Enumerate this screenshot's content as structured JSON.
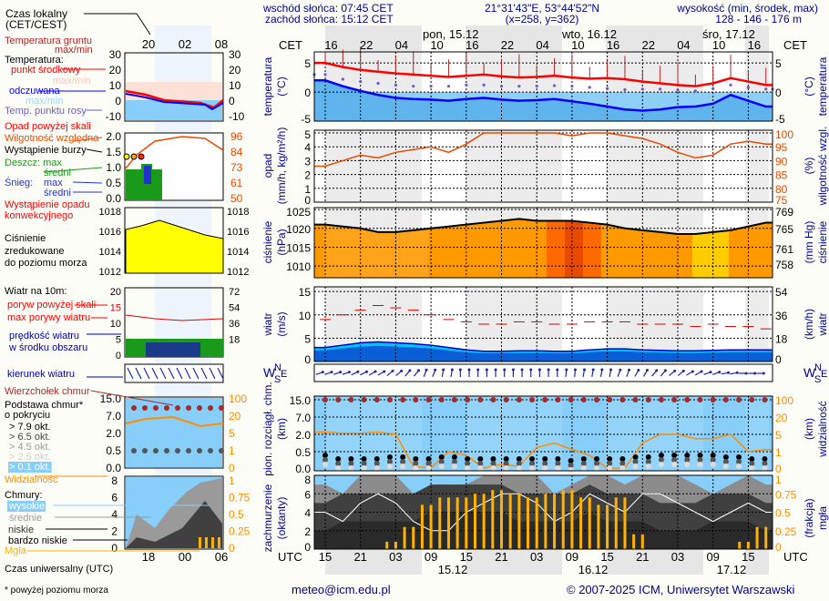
{
  "header": {
    "local_time_label": "Czas lokalny",
    "local_time_zone": "(CET/CEST)",
    "sunrise": "wschód słońca: 07:45 CET",
    "sunset": "zachód słońca: 15:12 CET",
    "coords": "21°31'43\"E, 53°44'52\"N",
    "grid": "(x=258,  y=362)",
    "elevation_label": "wysokość (min, środek, max)",
    "elevation": "128 - 146 - 176 m"
  },
  "time_axis": {
    "cet_label": "CET",
    "utc_label": "UTC",
    "cet_ticks": [
      "16",
      "22",
      "04",
      "10",
      "16",
      "22",
      "04",
      "10",
      "16",
      "22",
      "04",
      "10",
      "16"
    ],
    "utc_ticks": [
      "15",
      "21",
      "03",
      "09",
      "15",
      "21",
      "03",
      "09",
      "15",
      "21",
      "03",
      "09",
      "15"
    ],
    "days_top": [
      "pon, 15.12",
      "wto, 16.12",
      "śro, 17.12"
    ],
    "days_bottom": [
      "15.12",
      "16.12",
      "17.12"
    ]
  },
  "legend": {
    "local_ticks": [
      "20",
      "02",
      "08"
    ],
    "utc_ticks": [
      "18",
      "00",
      "06"
    ],
    "utc_label": "Czas uniwersalny (UTC)",
    "ground_temp": "Temperatura gruntu",
    "ground_temp_sub": "max/min",
    "temperature": "Temperatura:",
    "midpoint": "punkt środkowy",
    "maxmin1": "max/min",
    "feels": "odczuwana",
    "maxmin2": "max/min",
    "dew": "Temp. punktu rosy",
    "temp_ticks": [
      "30",
      "20",
      "10",
      "0",
      "-10"
    ],
    "precip_over": "Opad powyżej skali",
    "humidity": "Wilgotność względna",
    "storm": "Wystąpienie burzy",
    "rain": "Deszcz: max",
    "rain_avg": "średni",
    "snow": "Śnieg:",
    "snow_max": "max",
    "snow_avg": "średni",
    "precip_occ": "Wystąpienie opadu",
    "precip_conv": "konwekcyjnego",
    "precip_ticks": [
      "2.0",
      "1.5",
      "1.0",
      "0.5",
      "0.0"
    ],
    "hum_ticks": [
      "96",
      "84",
      "73",
      "61",
      "50"
    ],
    "pressure1": "Ciśnienie",
    "pressure2": "zredukowane",
    "pressure3": "do poziomu morza",
    "pres_ticks": [
      "1018",
      "1016",
      "1014",
      "1012"
    ],
    "wind_title": "Wiatr na 10m:",
    "gust_over": "poryw powyżej skali",
    "gust_max": "max porywy wiatru",
    "wind_avg1": "prędkość wiatru",
    "wind_avg2": "w środku obszaru",
    "wind_ticks": [
      "20",
      "15",
      "10",
      "5",
      "0"
    ],
    "wind_ticks_r": [
      "72",
      "54",
      "36",
      "18"
    ],
    "wind_dir": "kierunek wiatru",
    "cloud_top": "Wierzchołek chmur",
    "cloud_base1": "Podstawa chmur*",
    "cloud_base2": "o pokryciu",
    "okt": [
      "> 7.9 okt.",
      "> 6.5 okt.",
      "> 4.5 okt.",
      "> 2.5 okt.",
      "> 0.1 okt."
    ],
    "cloud_ticks": [
      "15.0",
      "7.0",
      "2.0",
      "0.5",
      "0.0"
    ],
    "vis_ticks": [
      "100",
      "20",
      "5",
      "1",
      "0"
    ],
    "visibility": "Widzialność",
    "clouds": "Chmury:",
    "high": "wysokie",
    "mid": "średnie",
    "low": "niskie",
    "vlow": "bardzo niskie",
    "fog": "Mgła",
    "okta_ticks": [
      "8",
      "6",
      "4",
      "2",
      "0"
    ],
    "fog_ticks": [
      "1",
      "0.75",
      "0.5",
      "0.25",
      "0"
    ]
  },
  "panels": {
    "temp": {
      "label": "temperatura",
      "unit": "(°C)",
      "ticks": [
        "5",
        "0",
        "-5"
      ]
    },
    "precip": {
      "label": "opad",
      "unit": "(mm/h, kg/m²/h)",
      "ticks": [
        "5",
        "4",
        "3",
        "2",
        "1",
        "0"
      ],
      "right_label": "wilgotność wzgl.",
      "right_unit": "(%)",
      "right_ticks": [
        "100",
        "95",
        "90",
        "85",
        "80",
        "75"
      ]
    },
    "pressure": {
      "label": "ciśnienie",
      "unit": "(hPa)",
      "ticks": [
        "1025",
        "1020",
        "1015",
        "1010"
      ],
      "right_label": "ciśnienie",
      "right_unit": "(mm Hg)",
      "right_ticks": [
        "769",
        "765",
        "761",
        "758"
      ]
    },
    "wind": {
      "label": "wiatr",
      "unit": "(m/s)",
      "ticks": [
        "15",
        "10",
        "5",
        "0"
      ],
      "right_label": "wiatr",
      "right_unit": "(km/h)",
      "right_ticks": [
        "54",
        "36",
        "18",
        "0"
      ]
    },
    "compass": {
      "n": "N",
      "w": "W",
      "e": "E",
      "s": "S"
    },
    "cloud": {
      "label": "pion. rozciągł. chm.",
      "unit": "(km)",
      "ticks": [
        "15.0",
        "7.0",
        "2.0",
        "0.5",
        "0.0"
      ],
      "right_label": "widzialność",
      "right_unit": "(km)",
      "right_ticks": [
        "100",
        "20",
        "5",
        "1",
        "0"
      ]
    },
    "cover": {
      "label": "zachmurzenie",
      "unit": "(oktanty)",
      "ticks": [
        "8",
        "6",
        "4",
        "2",
        "0"
      ],
      "right_label": "mgła",
      "right_unit": "(frakcja)",
      "right_ticks": [
        "1",
        "0.75",
        "0.5",
        "0.25",
        "0"
      ]
    }
  },
  "footer": {
    "note": "* powyżej poziomu morza",
    "email": "meteo@icm.edu.pl",
    "copyright": "© 2007-2025 ICM, Uniwersytet Warszawski"
  },
  "colors": {
    "temp": "#ff0000",
    "feels": "#0000ff",
    "dew": "#6a5acd",
    "humidity": "#e84a00",
    "pressure_fill": "#ff9900",
    "wind_fill": "#0066ee",
    "gust": "#e00000",
    "visibility": "#ff8c00",
    "cloud_top": "#a52a2a",
    "fog": "#ffb300",
    "axis_text": "#00008b"
  },
  "chart_data": {
    "type": "line",
    "title": "Meteogram",
    "x_hours_utc_from": "14.12 15:00 UTC",
    "x": [
      0,
      3,
      6,
      9,
      12,
      15,
      18,
      21,
      24,
      27,
      30,
      33,
      36,
      39,
      42,
      45,
      48,
      51,
      54,
      57,
      60,
      63,
      66,
      69,
      72,
      75
    ],
    "series": [
      {
        "name": "temperatura (°C)",
        "values": [
          5,
          4.3,
          3.8,
          3.5,
          3.2,
          3,
          2.8,
          2.6,
          2.8,
          3,
          2.7,
          2.5,
          2.6,
          2.8,
          2.5,
          2.3,
          2.4,
          2.2,
          1.8,
          1.5,
          1.2,
          1.0,
          1.5,
          2.4,
          1.8,
          1.2
        ]
      },
      {
        "name": "odczuwana (°C)",
        "values": [
          2,
          1,
          0.2,
          -0.5,
          -1,
          -1.2,
          -1.3,
          -1.5,
          -1.2,
          -1,
          -1.3,
          -1.5,
          -1.4,
          -1.2,
          -1.6,
          -2,
          -2.5,
          -3,
          -3.2,
          -3,
          -2.6,
          -2.5,
          -2,
          -0.5,
          -1.5,
          -2.5
        ]
      },
      {
        "name": "punkt rosy (°C)",
        "values": [
          3,
          2.2,
          1.8,
          1.5,
          1.2,
          1,
          1,
          1,
          1.2,
          1.2,
          1,
          1,
          1,
          1.1,
          1,
          0.8,
          0.6,
          0.4,
          0.5,
          0.5,
          0.3,
          0.2,
          0.6,
          1.2,
          0.8,
          0.5
        ]
      },
      {
        "name": "wilgotność (%)",
        "values": [
          88,
          90,
          92,
          91,
          93,
          94,
          95,
          93,
          96,
          100,
          100,
          100,
          100,
          100,
          99,
          100,
          100,
          99,
          98,
          96,
          93,
          91,
          92,
          96,
          97,
          96
        ]
      },
      {
        "name": "ciśnienie (hPa)",
        "values": [
          1021,
          1020.5,
          1020,
          1019,
          1019,
          1019.5,
          1020,
          1020.5,
          1021,
          1021.5,
          1022,
          1022.5,
          1022,
          1022,
          1022,
          1021.5,
          1021,
          1020,
          1019.5,
          1019,
          1018.5,
          1018.5,
          1019,
          1019.5,
          1020.5,
          1021.5
        ]
      },
      {
        "name": "wiatr (m/s)",
        "values": [
          3,
          3.5,
          4,
          4.2,
          4,
          3.8,
          3.5,
          3,
          2.5,
          2.2,
          2.2,
          2.3,
          2.3,
          2.2,
          2.2,
          2.5,
          2.7,
          2.7,
          2.5,
          2.4,
          2.3,
          2.3,
          2.4,
          2.5,
          2.5,
          2.5
        ]
      },
      {
        "name": "porywy (m/s)",
        "values": [
          9,
          10,
          11,
          12,
          11.5,
          11,
          10,
          9,
          8.5,
          8,
          8,
          8.5,
          8.5,
          8,
          8,
          8.5,
          8.5,
          8.5,
          8,
          8,
          8,
          7.5,
          8,
          7.5,
          7.5,
          7
        ]
      },
      {
        "name": "kierunek wiatru (°)",
        "values": [
          250,
          250,
          245,
          240,
          230,
          220,
          200,
          190,
          180,
          180,
          180,
          180,
          180,
          180,
          185,
          190,
          190,
          200,
          210,
          220,
          230,
          240,
          250,
          260,
          270,
          270
        ]
      },
      {
        "name": "widzialność (km)",
        "values": [
          7,
          6,
          6,
          7,
          5,
          0.2,
          0.1,
          1,
          0.8,
          0.1,
          0.3,
          0.2,
          2,
          3,
          1.5,
          0.8,
          0.1,
          0.1,
          3,
          5,
          5,
          4,
          4,
          5,
          1,
          1.5
        ]
      },
      {
        "name": "podstawa chmur (km)",
        "values": [
          0.4,
          0.3,
          0.3,
          0.3,
          0.35,
          0.3,
          0.3,
          0.35,
          0.3,
          0.3,
          0.3,
          0.3,
          0.3,
          0.3,
          0.25,
          0.3,
          0.3,
          0.3,
          0.35,
          0.4,
          0.4,
          0.4,
          0.4,
          0.35,
          0.3,
          0.3
        ]
      },
      {
        "name": "wierzchołek chmur (km)",
        "values": [
          15,
          15,
          15,
          15,
          15,
          15,
          15,
          15,
          15,
          15,
          15,
          15,
          15,
          15,
          15,
          15,
          15,
          15,
          15,
          15,
          15,
          15,
          15,
          15,
          15,
          15
        ]
      },
      {
        "name": "chmury niskie (okt.)",
        "values": [
          5,
          6,
          6,
          6,
          6,
          6,
          7,
          7,
          7,
          7,
          7,
          6,
          6,
          6,
          6,
          7,
          6,
          6,
          6,
          5,
          5,
          5,
          6,
          6,
          6,
          5
        ]
      },
      {
        "name": "chmury wysokie (okt.)",
        "values": [
          4,
          3,
          5,
          6,
          5,
          3,
          2,
          2,
          4,
          5,
          6,
          6,
          5,
          3,
          4,
          6,
          5,
          4,
          6,
          6,
          5,
          4,
          3,
          4,
          5,
          4
        ]
      },
      {
        "name": "mgła (frakcja)",
        "values": [
          0,
          0,
          0,
          0,
          0.1,
          0.3,
          0.6,
          0.7,
          0.7,
          0.75,
          0.8,
          0.75,
          0.7,
          0.75,
          0.8,
          0.7,
          0.6,
          0.7,
          0.2,
          0,
          0,
          0,
          0,
          0,
          0.1,
          0.3
        ]
      }
    ]
  }
}
